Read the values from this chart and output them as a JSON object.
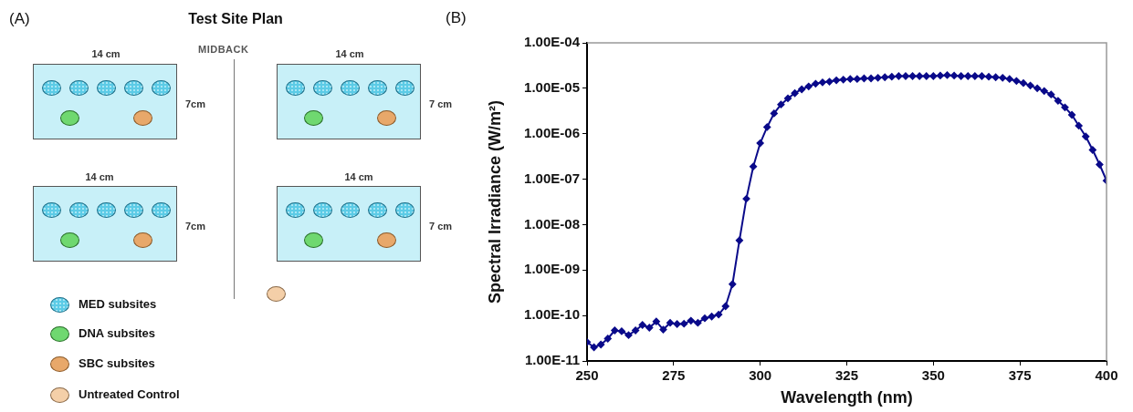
{
  "chart_data": [
    {
      "type": "other",
      "title": "Test Site Plan",
      "annotations": [
        "(A)",
        "MIDBACK",
        "14 cm",
        "14 cm",
        "14 cm",
        "14 cm",
        "7cm",
        "7 cm",
        "7cm",
        "7 cm",
        "MED subsites",
        "DNA subsites",
        "SBC subsites",
        "Untreated Control"
      ]
    },
    {
      "type": "line",
      "xlabel": "Wavelength (nm)",
      "ylabel": "Spectral Irradiance (W/m²)",
      "annotations": [
        "(B)"
      ],
      "log": "y",
      "grid": false,
      "legend": false,
      "marker": "diamond",
      "line_style": "solid",
      "xlim": [
        250,
        400
      ],
      "xticks": [
        250,
        275,
        300,
        325,
        350,
        375,
        400
      ],
      "ylim": [
        1e-11,
        0.0001
      ],
      "yticks": [
        {
          "value": 1e-11,
          "label": "1.00E-11"
        },
        {
          "value": 1e-10,
          "label": "1.00E-10"
        },
        {
          "value": 1e-09,
          "label": "1.00E-09"
        },
        {
          "value": 1e-08,
          "label": "1.00E-08"
        },
        {
          "value": 1e-07,
          "label": "1.00E-07"
        },
        {
          "value": 1e-06,
          "label": "1.00E-06"
        },
        {
          "value": 1e-05,
          "label": "1.00E-05"
        },
        {
          "value": 0.0001,
          "label": "1.00E-04"
        }
      ],
      "series": [
        {
          "color": "#0a0a8a",
          "x": [
            250,
            252,
            254,
            256,
            258,
            260,
            262,
            264,
            266,
            268,
            270,
            272,
            274,
            276,
            278,
            280,
            282,
            284,
            286,
            288,
            290,
            292,
            294,
            296,
            298,
            300,
            302,
            304,
            306,
            308,
            310,
            312,
            314,
            316,
            318,
            320,
            322,
            324,
            326,
            328,
            330,
            332,
            334,
            336,
            338,
            340,
            342,
            344,
            346,
            348,
            350,
            352,
            354,
            356,
            358,
            360,
            362,
            364,
            366,
            368,
            370,
            372,
            374,
            376,
            378,
            380,
            382,
            384,
            386,
            388,
            390,
            392,
            394,
            396,
            398,
            400
          ],
          "values": [
            2.6e-11,
            2e-11,
            2.3e-11,
            3.1e-11,
            4.7e-11,
            4.5e-11,
            3.7e-11,
            4.7e-11,
            6.2e-11,
            5.4e-11,
            7.4e-11,
            4.9e-11,
            6.9e-11,
            6.5e-11,
            6.6e-11,
            7.7e-11,
            6.9e-11,
            8.7e-11,
            9.5e-11,
            1.05e-10,
            1.6e-10,
            4.9e-10,
            4.5e-09,
            3.7e-08,
            1.9e-07,
            6.2e-07,
            1.4e-06,
            2.8e-06,
            4.4e-06,
            6e-06,
            7.8e-06,
            9.5e-06,
            1.1e-05,
            1.26e-05,
            1.35e-05,
            1.4e-05,
            1.5e-05,
            1.55e-05,
            1.6e-05,
            1.6e-05,
            1.65e-05,
            1.65e-05,
            1.7e-05,
            1.75e-05,
            1.8e-05,
            1.85e-05,
            1.85e-05,
            1.85e-05,
            1.85e-05,
            1.85e-05,
            1.85e-05,
            1.9e-05,
            1.95e-05,
            1.9e-05,
            1.85e-05,
            1.85e-05,
            1.85e-05,
            1.85e-05,
            1.8e-05,
            1.75e-05,
            1.7e-05,
            1.6e-05,
            1.45e-05,
            1.3e-05,
            1.15e-05,
            1e-05,
            8.7e-06,
            7.3e-06,
            5.3e-06,
            3.8e-06,
            2.6e-06,
            1.5e-06,
            8.7e-07,
            4.4e-07,
            2.1e-07,
            9.3e-08
          ]
        }
      ]
    }
  ]
}
